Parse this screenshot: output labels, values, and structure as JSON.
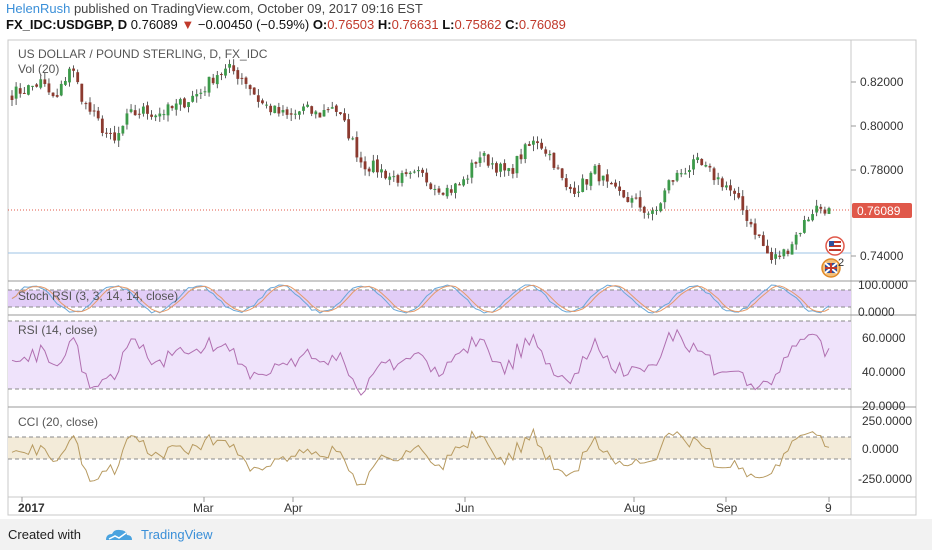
{
  "header": {
    "author": "HelenRush",
    "published_text": "published on TradingView.com, October 09, 2017 09:16 EST",
    "symbol": "FX_IDC:USDGBP, D",
    "last": "0.76089",
    "change": "−0.00450 (−0.59%)",
    "o_label": "O:",
    "o_value": "0.76503",
    "h_label": "H:",
    "h_value": "0.76631",
    "l_label": "L:",
    "l_value": "0.75862",
    "c_label": "C:",
    "c_value": "0.76089"
  },
  "main_pane": {
    "title": "US DOLLAR / POUND STERLING, D, FX_IDC",
    "vol_label": "Vol (20)",
    "current_price_badge": "0.76089",
    "y_ticks": [
      "0.82000",
      "0.80000",
      "0.78000",
      "0.74000"
    ],
    "event_badge": "2",
    "colors": {
      "up": "#3c9a4a",
      "down": "#8c3a2f",
      "price_line": "#e0584a"
    }
  },
  "stoch_pane": {
    "title": "Stoch RSI (3, 3, 14, 14, close)",
    "y_ticks": [
      "100.0000",
      "0.0000"
    ],
    "fill": "#e2cdf7"
  },
  "rsi_pane": {
    "title": "RSI (14, close)",
    "y_ticks": [
      "60.0000",
      "40.0000",
      "20.0000"
    ],
    "fill": "#efe3fb"
  },
  "cci_pane": {
    "title": "CCI (20, close)",
    "y_ticks": [
      "250.0000",
      "0.0000",
      "-250.0000"
    ],
    "fill": "#f3ebd9"
  },
  "x_axis": {
    "labels": [
      "2017",
      "Mar",
      "Apr",
      "Jun",
      "Aug",
      "Sep",
      "9"
    ]
  },
  "footer": {
    "created_with": "Created with",
    "brand": "TradingView"
  },
  "chart_data": {
    "type": "candlestick",
    "title": "US DOLLAR / POUND STERLING, D, FX_IDC",
    "x_labels": [
      "2017",
      "Mar",
      "Apr",
      "Jun",
      "Aug",
      "Sep",
      "9"
    ],
    "ylim": [
      0.73,
      0.835
    ],
    "close_series_approx": [
      0.813,
      0.815,
      0.818,
      0.809,
      0.826,
      0.808,
      0.799,
      0.79,
      0.803,
      0.805,
      0.804,
      0.806,
      0.81,
      0.814,
      0.822,
      0.824,
      0.819,
      0.809,
      0.805,
      0.802,
      0.806,
      0.803,
      0.808,
      0.796,
      0.781,
      0.779,
      0.775,
      0.774,
      0.776,
      0.771,
      0.769,
      0.773,
      0.785,
      0.781,
      0.776,
      0.786,
      0.792,
      0.784,
      0.769,
      0.771,
      0.778,
      0.769,
      0.766,
      0.762,
      0.757,
      0.772,
      0.778,
      0.781,
      0.776,
      0.771,
      0.761,
      0.75,
      0.737,
      0.741,
      0.751,
      0.761,
      0.76089
    ],
    "indicators": {
      "stoch_rsi": {
        "ylim": [
          0,
          100
        ],
        "bands": [
          80,
          20
        ]
      },
      "rsi": {
        "ylim": [
          20,
          70
        ],
        "bands": [
          70,
          30
        ]
      },
      "cci": {
        "ylim": [
          -300,
          300
        ],
        "bands": [
          100,
          -100
        ]
      }
    }
  }
}
